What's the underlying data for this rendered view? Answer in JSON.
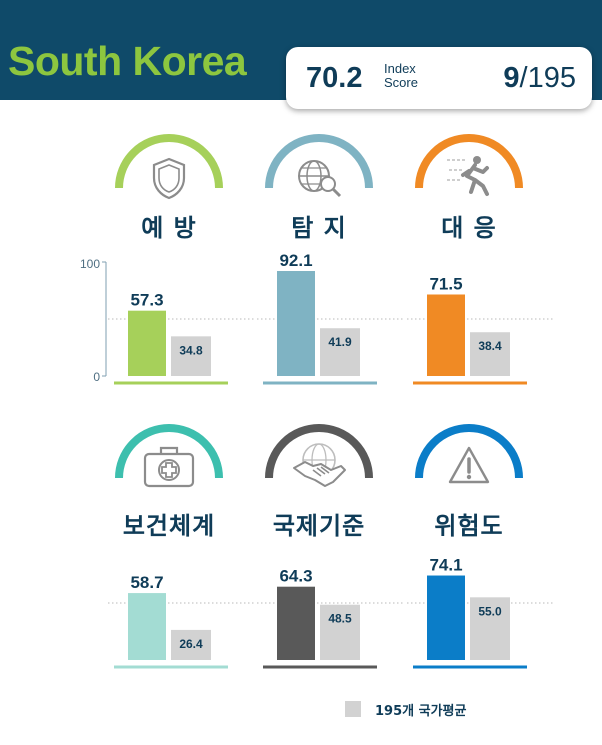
{
  "header": {
    "country": "South Korea",
    "score": "70.2",
    "score_label_line1": "Index",
    "score_label_line2": "Score",
    "rank_value": "9",
    "rank_total": "/195"
  },
  "colors": {
    "header_bg": "#0f4a69",
    "country_text": "#8dc63f",
    "prevent": "#a6d05a",
    "detect": "#7fb3c3",
    "respond": "#f08a24",
    "health": "#a3dcd3",
    "norms": "#595959",
    "risk": "#0b7dc8",
    "average": "#d2d2d2"
  },
  "icons": {
    "prevent": "shield-icon",
    "detect": "globe-magnifier-icon",
    "respond": "running-person-icon",
    "health": "medical-kit-icon",
    "norms": "handshake-globe-icon",
    "risk": "warning-triangle-icon"
  },
  "categories": [
    {
      "key": "prevent",
      "label": "예 방",
      "icon": "shield-icon"
    },
    {
      "key": "detect",
      "label": "탐 지",
      "icon": "globe-magnifier-icon"
    },
    {
      "key": "respond",
      "label": "대 응",
      "icon": "running-person-icon"
    },
    {
      "key": "health",
      "label": "보건체계",
      "icon": "medical-kit-icon"
    },
    {
      "key": "norms",
      "label": "국제기준",
      "icon": "handshake-globe-icon"
    },
    {
      "key": "risk",
      "label": "위험도",
      "icon": "warning-triangle-icon"
    }
  ],
  "legend": {
    "label": "195개 국가평균"
  },
  "chart_data": [
    {
      "type": "bar",
      "category": "예 방",
      "ylim": [
        0,
        100
      ],
      "yticks": [
        "100",
        "0"
      ],
      "reference_line": 50,
      "series": [
        {
          "name": "South Korea",
          "values": [
            57.3
          ]
        },
        {
          "name": "195개 국가평균",
          "values": [
            34.8
          ]
        }
      ]
    },
    {
      "type": "bar",
      "category": "탐 지",
      "ylim": [
        0,
        100
      ],
      "reference_line": 50,
      "series": [
        {
          "name": "South Korea",
          "values": [
            92.1
          ]
        },
        {
          "name": "195개 국가평균",
          "values": [
            41.9
          ]
        }
      ]
    },
    {
      "type": "bar",
      "category": "대 응",
      "ylim": [
        0,
        100
      ],
      "reference_line": 50,
      "series": [
        {
          "name": "South Korea",
          "values": [
            71.5
          ]
        },
        {
          "name": "195개 국가평균",
          "values": [
            38.4
          ]
        }
      ]
    },
    {
      "type": "bar",
      "category": "보건체계",
      "ylim": [
        0,
        100
      ],
      "reference_line": 50,
      "series": [
        {
          "name": "South Korea",
          "values": [
            58.7
          ]
        },
        {
          "name": "195개 국가평균",
          "values": [
            26.4
          ]
        }
      ]
    },
    {
      "type": "bar",
      "category": "국제기준",
      "ylim": [
        0,
        100
      ],
      "reference_line": 50,
      "series": [
        {
          "name": "South Korea",
          "values": [
            64.3
          ]
        },
        {
          "name": "195개 국가평균",
          "values": [
            48.5
          ]
        }
      ]
    },
    {
      "type": "bar",
      "category": "위험도",
      "ylim": [
        0,
        100
      ],
      "reference_line": 50,
      "series": [
        {
          "name": "South Korea",
          "values": [
            74.1
          ]
        },
        {
          "name": "195개 국가평균",
          "values": [
            55.0
          ]
        }
      ]
    }
  ]
}
